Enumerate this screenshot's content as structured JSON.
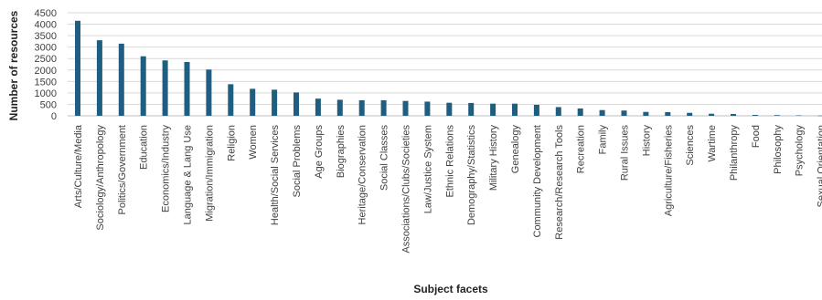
{
  "chart_data": {
    "type": "bar",
    "title": "",
    "xlabel": "Subject facets",
    "ylabel": "Number of resources",
    "ylim": [
      0,
      4500
    ],
    "yticks": [
      0,
      500,
      1000,
      1500,
      2000,
      2500,
      3000,
      3500,
      4000,
      4500
    ],
    "grid": true,
    "legend": "none",
    "bar_color": "#1F5E7E",
    "grid_color": "#d9d9d9",
    "categories": [
      "Arts/Culture/Media",
      "Sociology/Anthropology",
      "Politics/Government",
      "Education",
      "Economics/Industry",
      "Language & Lang Use",
      "Migration/Immigration",
      "Religion",
      "Women",
      "Health/Social Services",
      "Social Problems",
      "Age Groups",
      "Biographies",
      "Heritage/Conservation",
      "Social Classes",
      "Associations/Clubs/Societies",
      "Law/Justice System",
      "Ethnic Relations",
      "Demography/Statistics",
      "Military History",
      "Genealogy",
      "Community Development",
      "Research/Research Tools",
      "Recreation",
      "Family",
      "Rural Issues",
      "History",
      "Agriculture/Fisheries",
      "Sciences",
      "Wartime",
      "Philanthropy",
      "Food",
      "Philosophy",
      "Psychology",
      "Sexual Orientation"
    ],
    "values": [
      4150,
      3300,
      3150,
      2600,
      2420,
      2350,
      2020,
      1380,
      1180,
      1140,
      1020,
      750,
      700,
      680,
      680,
      650,
      620,
      570,
      560,
      530,
      530,
      480,
      380,
      320,
      250,
      230,
      170,
      160,
      130,
      90,
      80,
      40,
      30,
      20,
      10
    ]
  }
}
